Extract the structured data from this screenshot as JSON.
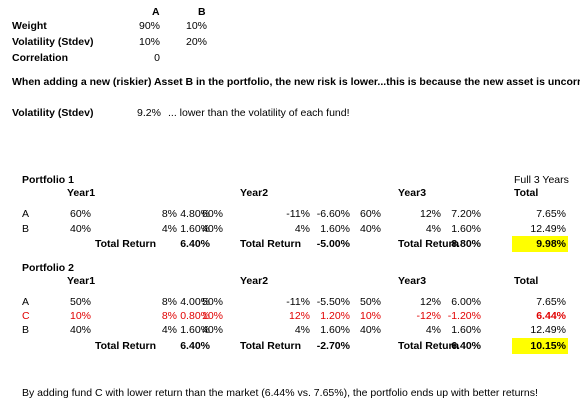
{
  "top": {
    "headers": [
      "A",
      "B"
    ],
    "rows": [
      {
        "label": "Weight",
        "values": [
          "90%",
          "10%"
        ]
      },
      {
        "label": "Volatility (Stdev)",
        "values": [
          "10%",
          "20%"
        ]
      },
      {
        "label": "Correlation",
        "values": [
          "0"
        ]
      }
    ]
  },
  "statement": "When adding a new (riskier) Asset B in the portfolio, the new risk is lower...this is because the new asset is uncorrelated",
  "result": {
    "label": "Volatility (Stdev)",
    "value": "9.2%",
    "note": "... lower than the volatility of each fund!"
  },
  "portfolios": [
    {
      "title": "Portfolio 1",
      "total_note": "Full 3 Years",
      "year_headers": [
        "Year1",
        "Year2",
        "Year3"
      ],
      "total_header": "Total",
      "rows": [
        {
          "fund": "A",
          "cells": [
            "60%",
            "8%",
            "4.80%",
            "60%",
            "-11%",
            "-6.60%",
            "60%",
            "12%",
            "7.20%"
          ],
          "total": "7.65%"
        },
        {
          "fund": "B",
          "cells": [
            "40%",
            "4%",
            "1.60%",
            "40%",
            "4%",
            "1.60%",
            "40%",
            "4%",
            "1.60%"
          ],
          "total": "12.49%"
        }
      ],
      "total_row": {
        "label": "Total Return",
        "values": [
          "6.40%",
          "-5.00%",
          "8.80%"
        ],
        "total": "9.98%"
      }
    },
    {
      "title": "Portfolio 2",
      "year_headers": [
        "Year1",
        "Year2",
        "Year3"
      ],
      "total_header": "Total",
      "rows": [
        {
          "fund": "A",
          "cells": [
            "50%",
            "8%",
            "4.00%",
            "50%",
            "-11%",
            "-5.50%",
            "50%",
            "12%",
            "6.00%"
          ],
          "total": "7.65%"
        },
        {
          "fund": "C",
          "cells": [
            "10%",
            "8%",
            "0.80%",
            "10%",
            "12%",
            "1.20%",
            "10%",
            "-12%",
            "-1.20%"
          ],
          "total": "6.44%",
          "highlight": "red"
        },
        {
          "fund": "B",
          "cells": [
            "40%",
            "4%",
            "1.60%",
            "40%",
            "4%",
            "1.60%",
            "40%",
            "4%",
            "1.60%"
          ],
          "total": "12.49%"
        }
      ],
      "total_row": {
        "label": "Total Return",
        "values": [
          "6.40%",
          "-2.70%",
          "6.40%"
        ],
        "total": "10.15%"
      }
    }
  ],
  "footer": "By adding fund C  with lower return than the market (6.44% vs. 7.65%), the portfolio ends up with better returns!"
}
